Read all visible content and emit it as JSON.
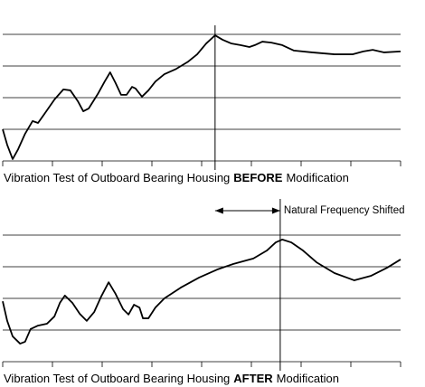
{
  "chart_data": [
    {
      "type": "line",
      "title_parts": [
        "Vibration Test of Outboard Bearing Housing",
        "BEFORE",
        "Modification"
      ],
      "xlim": [
        0,
        8
      ],
      "xticks": [
        0,
        1,
        2,
        3,
        4,
        5,
        6,
        7,
        8
      ],
      "ylim": [
        0,
        4
      ],
      "yticks": [
        0,
        1,
        2,
        3,
        4
      ],
      "grid": true,
      "color": "#000000",
      "vline": 4.27,
      "x": [
        0,
        0.09,
        0.2,
        0.31,
        0.45,
        0.6,
        0.71,
        0.85,
        1.04,
        1.22,
        1.36,
        1.51,
        1.62,
        1.73,
        1.91,
        2.05,
        2.16,
        2.27,
        2.38,
        2.49,
        2.6,
        2.67,
        2.8,
        2.93,
        3.07,
        3.25,
        3.49,
        3.73,
        3.91,
        4.09,
        4.27,
        4.42,
        4.6,
        4.78,
        4.96,
        5.07,
        5.22,
        5.4,
        5.62,
        5.85,
        6.22,
        6.67,
        7.04,
        7.25,
        7.44,
        7.67,
        8
      ],
      "values": [
        1.0,
        0.51,
        0.06,
        0.37,
        0.86,
        1.26,
        1.2,
        1.51,
        1.94,
        2.26,
        2.23,
        1.89,
        1.57,
        1.66,
        2.11,
        2.51,
        2.8,
        2.46,
        2.09,
        2.09,
        2.34,
        2.29,
        2.03,
        2.23,
        2.51,
        2.74,
        2.91,
        3.14,
        3.37,
        3.71,
        3.97,
        3.83,
        3.71,
        3.66,
        3.6,
        3.66,
        3.77,
        3.74,
        3.66,
        3.49,
        3.43,
        3.37,
        3.37,
        3.46,
        3.51,
        3.43,
        3.46
      ]
    },
    {
      "type": "line",
      "title_parts": [
        "Vibration Test of Outboard Bearing Housing",
        "AFTER",
        "Modification"
      ],
      "xlim": [
        0,
        8
      ],
      "xticks": [
        0,
        1,
        2,
        3,
        4,
        5,
        6,
        7,
        8
      ],
      "ylim": [
        0,
        4
      ],
      "yticks": [
        0,
        1,
        2,
        3,
        4
      ],
      "grid": true,
      "color": "#000000",
      "vline": 5.58,
      "annotation": "Natural Frequency Shifted",
      "x": [
        0,
        0.09,
        0.2,
        0.35,
        0.45,
        0.56,
        0.71,
        0.89,
        1.04,
        1.15,
        1.25,
        1.4,
        1.55,
        1.69,
        1.84,
        1.98,
        2.13,
        2.27,
        2.42,
        2.53,
        2.64,
        2.75,
        2.82,
        2.93,
        3.07,
        3.25,
        3.58,
        3.95,
        4.31,
        4.64,
        5.04,
        5.31,
        5.49,
        5.62,
        5.8,
        6.04,
        6.31,
        6.67,
        7.07,
        7.4,
        7.73,
        8
      ],
      "values": [
        1.91,
        1.29,
        0.8,
        0.57,
        0.63,
        1.03,
        1.14,
        1.2,
        1.43,
        1.86,
        2.09,
        1.86,
        1.51,
        1.29,
        1.57,
        2.06,
        2.51,
        2.14,
        1.66,
        1.49,
        1.8,
        1.71,
        1.37,
        1.37,
        1.71,
        2.0,
        2.34,
        2.66,
        2.91,
        3.09,
        3.26,
        3.51,
        3.77,
        3.86,
        3.77,
        3.51,
        3.14,
        2.8,
        2.57,
        2.71,
        2.97,
        3.23
      ]
    }
  ]
}
